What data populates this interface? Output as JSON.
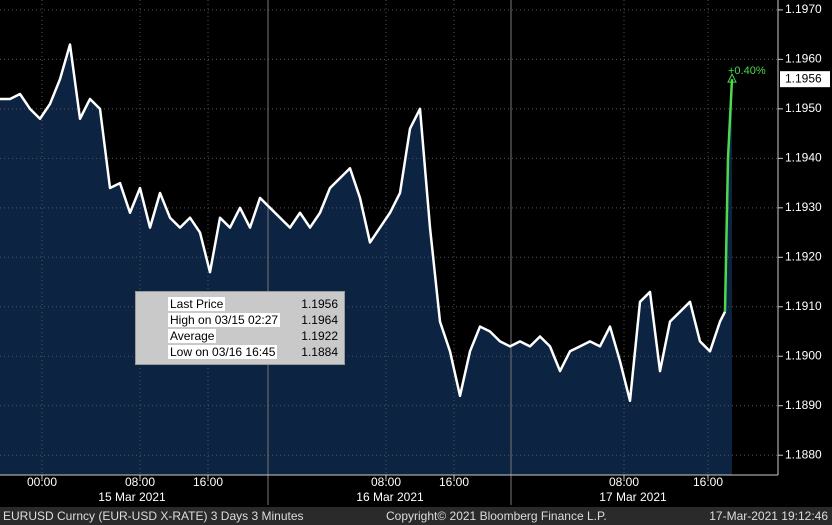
{
  "chart_data": {
    "type": "line",
    "series": [
      {
        "name": "Last Price",
        "color": "#ffffff",
        "x": [
          0,
          1,
          2,
          3,
          4,
          5,
          6,
          7,
          8,
          9,
          10,
          11,
          12,
          13,
          14,
          15,
          16,
          17,
          18,
          19,
          20,
          21,
          22,
          23,
          24,
          25,
          26,
          27,
          28,
          29,
          30,
          31,
          32,
          33,
          34,
          35,
          36,
          37,
          38,
          39,
          40,
          41,
          42,
          43,
          44,
          45,
          46,
          47,
          48,
          49,
          50,
          51,
          52,
          53,
          54,
          55,
          56,
          57,
          58,
          59,
          60,
          61,
          62,
          63,
          64,
          65,
          66,
          67,
          68,
          69,
          70,
          71,
          72,
          72.5
        ],
        "values": [
          1.1952,
          1.1952,
          1.1953,
          1.195,
          1.1948,
          1.1951,
          1.1956,
          1.1963,
          1.1948,
          1.1952,
          1.195,
          1.1934,
          1.1935,
          1.1929,
          1.1934,
          1.1926,
          1.1933,
          1.1928,
          1.1926,
          1.1928,
          1.1925,
          1.1917,
          1.1928,
          1.1926,
          1.193,
          1.1926,
          1.1932,
          1.193,
          1.1928,
          1.1926,
          1.1929,
          1.1926,
          1.1929,
          1.1934,
          1.1936,
          1.1938,
          1.1932,
          1.1923,
          1.1926,
          1.1929,
          1.1933,
          1.1946,
          1.195,
          1.1926,
          1.1907,
          1.1901,
          1.1892,
          1.1901,
          1.1906,
          1.1905,
          1.1903,
          1.1902,
          1.1903,
          1.1902,
          1.1904,
          1.1902,
          1.1897,
          1.1901,
          1.1902,
          1.1903,
          1.1902,
          1.1906,
          1.1899,
          1.1891,
          1.1911,
          1.1913,
          1.1897,
          1.1907,
          1.1909,
          1.1911,
          1.1903,
          1.1901,
          1.1907,
          1.1909
        ]
      },
      {
        "name": "Latest",
        "color": "#4cd94c",
        "x": [
          72.5,
          72.8,
          73.2
        ],
        "values": [
          1.1909,
          1.194,
          1.1956
        ]
      }
    ],
    "xlim": [
      0,
      77.8
    ],
    "ylim": [
      1.1876,
      1.1972
    ],
    "yticks": [
      {
        "value": 1.188,
        "label": "1.1880"
      },
      {
        "value": 1.189,
        "label": "1.1890"
      },
      {
        "value": 1.19,
        "label": "1.1900"
      },
      {
        "value": 1.191,
        "label": "1.1910"
      },
      {
        "value": 1.192,
        "label": "1.1920"
      },
      {
        "value": 1.193,
        "label": "1.1930"
      },
      {
        "value": 1.194,
        "label": "1.1940"
      },
      {
        "value": 1.195,
        "label": "1.1950"
      },
      {
        "value": 1.196,
        "label": "1.1960"
      },
      {
        "value": 1.197,
        "label": "1.1970"
      }
    ],
    "xticks": [
      {
        "value": 4.2,
        "label": "00:00"
      },
      {
        "value": 14,
        "label": "08:00"
      },
      {
        "value": 20.8,
        "label": "16:00"
      },
      {
        "value": 38.6,
        "label": "08:00"
      },
      {
        "value": 45.4,
        "label": "16:00"
      },
      {
        "value": 62.4,
        "label": "08:00"
      },
      {
        "value": 70.8,
        "label": "16:00"
      }
    ],
    "day_ticks": [
      {
        "value": 13.2,
        "label": "15 Mar 2021"
      },
      {
        "value": 39,
        "label": "16 Mar 2021"
      },
      {
        "value": 63.3,
        "label": "17 Mar 2021"
      }
    ],
    "day_separators": [
      26.8,
      51.1
    ],
    "last_price": {
      "value": 1.1956,
      "label": "1.1956"
    },
    "change_annotation": "+0.40%",
    "legend": [
      {
        "label": "Last Price",
        "value": "1.1956"
      },
      {
        "label": "High on 03/15 02:27",
        "value": "1.1964"
      },
      {
        "label": "Average",
        "value": "1.1922"
      },
      {
        "label": "Low on 03/16 16:45",
        "value": "1.1884"
      }
    ],
    "footer": {
      "left": "EURUSD Curncy (EUR-USD X-RATE) 3 Days 3 Minutes",
      "center": "Copyright© 2021 Bloomberg Finance L.P.",
      "right": "17-Mar-2021 19:12:46"
    },
    "area_color": "#0c2341",
    "grid": true
  }
}
